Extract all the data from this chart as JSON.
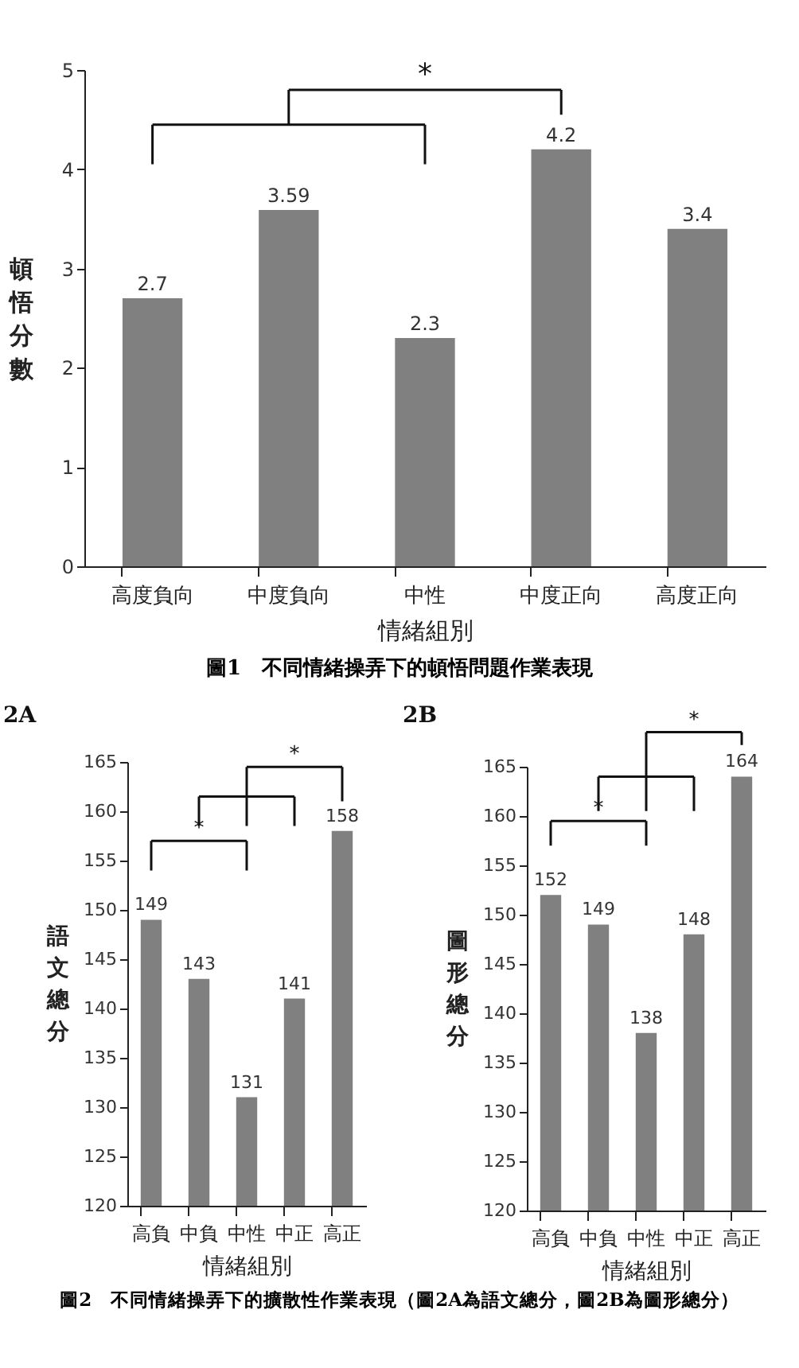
{
  "chart_data": [
    {
      "type": "bar",
      "xlabel": "情緒組別",
      "ylabel": "頓悟分數",
      "categories": [
        "高度負向",
        "中度負向",
        "中性",
        "中度正向",
        "高度正向"
      ],
      "values": [
        2.7,
        3.59,
        2.3,
        4.2,
        3.4
      ],
      "color": "#808080",
      "ylim": [
        0,
        5
      ],
      "yticks": [
        0,
        1,
        2,
        3,
        4,
        5
      ],
      "data_labels": true,
      "annotations": [
        "*",
        "圖1　不同情緒操弄下的頓悟問題作業表現"
      ]
    },
    {
      "type": "bar",
      "title": "2A",
      "xlabel": "情緒組別",
      "ylabel": "語文總分",
      "categories": [
        "高負",
        "中負",
        "中性",
        "中正",
        "高正"
      ],
      "values": [
        149,
        143,
        131,
        141,
        158
      ],
      "color": "#808080",
      "ylim": [
        120,
        165
      ],
      "yticks": [
        120,
        125,
        130,
        135,
        140,
        145,
        150,
        155,
        160,
        165
      ],
      "data_labels": true,
      "annotations": [
        "*",
        "*"
      ]
    },
    {
      "type": "bar",
      "title": "2B",
      "xlabel": "情緒組別",
      "ylabel": "圖形總分",
      "categories": [
        "高負",
        "中負",
        "中性",
        "中正",
        "高正"
      ],
      "values": [
        152,
        149,
        138,
        148,
        164
      ],
      "color": "#808080",
      "ylim": [
        120,
        165
      ],
      "yticks": [
        120,
        125,
        130,
        135,
        140,
        145,
        150,
        155,
        160,
        165
      ],
      "data_labels": true,
      "annotations": [
        "*",
        "*",
        "圖2　不同情緒操弄下的擴散性作業表現（圖2A為語文總分，圖2B為圖形總分）"
      ]
    }
  ]
}
